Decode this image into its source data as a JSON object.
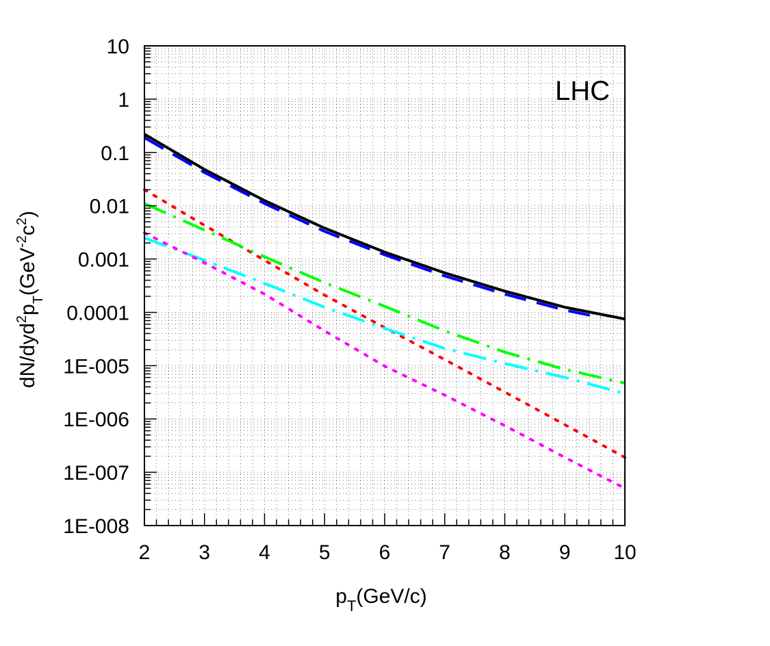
{
  "chart_data": {
    "type": "line",
    "title": "",
    "annotation": "LHC",
    "xlabel": {
      "main": "p",
      "sub": "T",
      "rest": "(GeV/c)"
    },
    "ylabel": {
      "p1": "dN/dyd",
      "sup1": "2",
      "p2": "p",
      "sub1": "T",
      "p3": "(GeV",
      "sup2": "-2",
      "p4": "c",
      "sup3": "2",
      "p5": ")"
    },
    "xlim": [
      2,
      10
    ],
    "ylim": [
      1e-08,
      10
    ],
    "yscale": "log",
    "grid": true,
    "x_tick_labels": [
      "2",
      "3",
      "4",
      "5",
      "6",
      "7",
      "8",
      "9",
      "10"
    ],
    "x_tick_values": [
      2,
      3,
      4,
      5,
      6,
      7,
      8,
      9,
      10
    ],
    "y_tick_labels": [
      "10",
      "1",
      "0.1",
      "0.01",
      "0.001",
      "0.0001",
      "1E-005",
      "1E-006",
      "1E-007",
      "1E-008"
    ],
    "y_tick_values": [
      10,
      1,
      0.1,
      0.01,
      0.001,
      0.0001,
      1e-05,
      1e-06,
      1e-07,
      1e-08
    ],
    "series": [
      {
        "style": "solid",
        "color": "#000000",
        "x": [
          2,
          3,
          4,
          5,
          6,
          7,
          8,
          9,
          10
        ],
        "y": [
          0.22,
          0.048,
          0.0125,
          0.0038,
          0.00135,
          0.00055,
          0.00025,
          0.000125,
          7.5e-05
        ]
      },
      {
        "style": "longdash",
        "color": "#0000ff",
        "x": [
          2,
          3,
          4,
          5,
          6,
          7,
          8,
          9,
          9.6
        ],
        "y": [
          0.19,
          0.042,
          0.011,
          0.0033,
          0.0012,
          0.00048,
          0.00022,
          0.00011,
          8e-05
        ]
      },
      {
        "style": "dotted",
        "color": "#ff0000",
        "x": [
          2,
          3,
          4,
          5,
          6,
          7,
          8,
          9,
          10
        ],
        "y": [
          0.02,
          0.0043,
          0.00095,
          0.00021,
          5.2e-05,
          1.3e-05,
          3.2e-06,
          7.8e-07,
          1.9e-07
        ]
      },
      {
        "style": "dashdot",
        "color": "#00ff00",
        "x": [
          2,
          3,
          4,
          5,
          6,
          7,
          8,
          9,
          10
        ],
        "y": [
          0.011,
          0.0035,
          0.0011,
          0.00036,
          0.00013,
          4.5e-05,
          1.8e-05,
          8.5e-06,
          4.7e-06
        ]
      },
      {
        "style": "dashdot",
        "color": "#00ffff",
        "x": [
          2,
          3,
          4,
          5,
          6,
          7,
          8,
          9,
          10
        ],
        "y": [
          0.0025,
          0.00095,
          0.00035,
          0.000125,
          5e-05,
          2.1e-05,
          1.1e-05,
          6e-06,
          3e-06
        ]
      },
      {
        "style": "dotted",
        "color": "#ff00ff",
        "x": [
          2,
          3,
          4,
          5,
          6,
          7,
          8,
          9,
          10
        ],
        "y": [
          0.0031,
          0.00085,
          0.00022,
          4.5e-05,
          9.8e-06,
          2.8e-06,
          7.5e-07,
          1.9e-07,
          5e-08
        ]
      }
    ]
  }
}
